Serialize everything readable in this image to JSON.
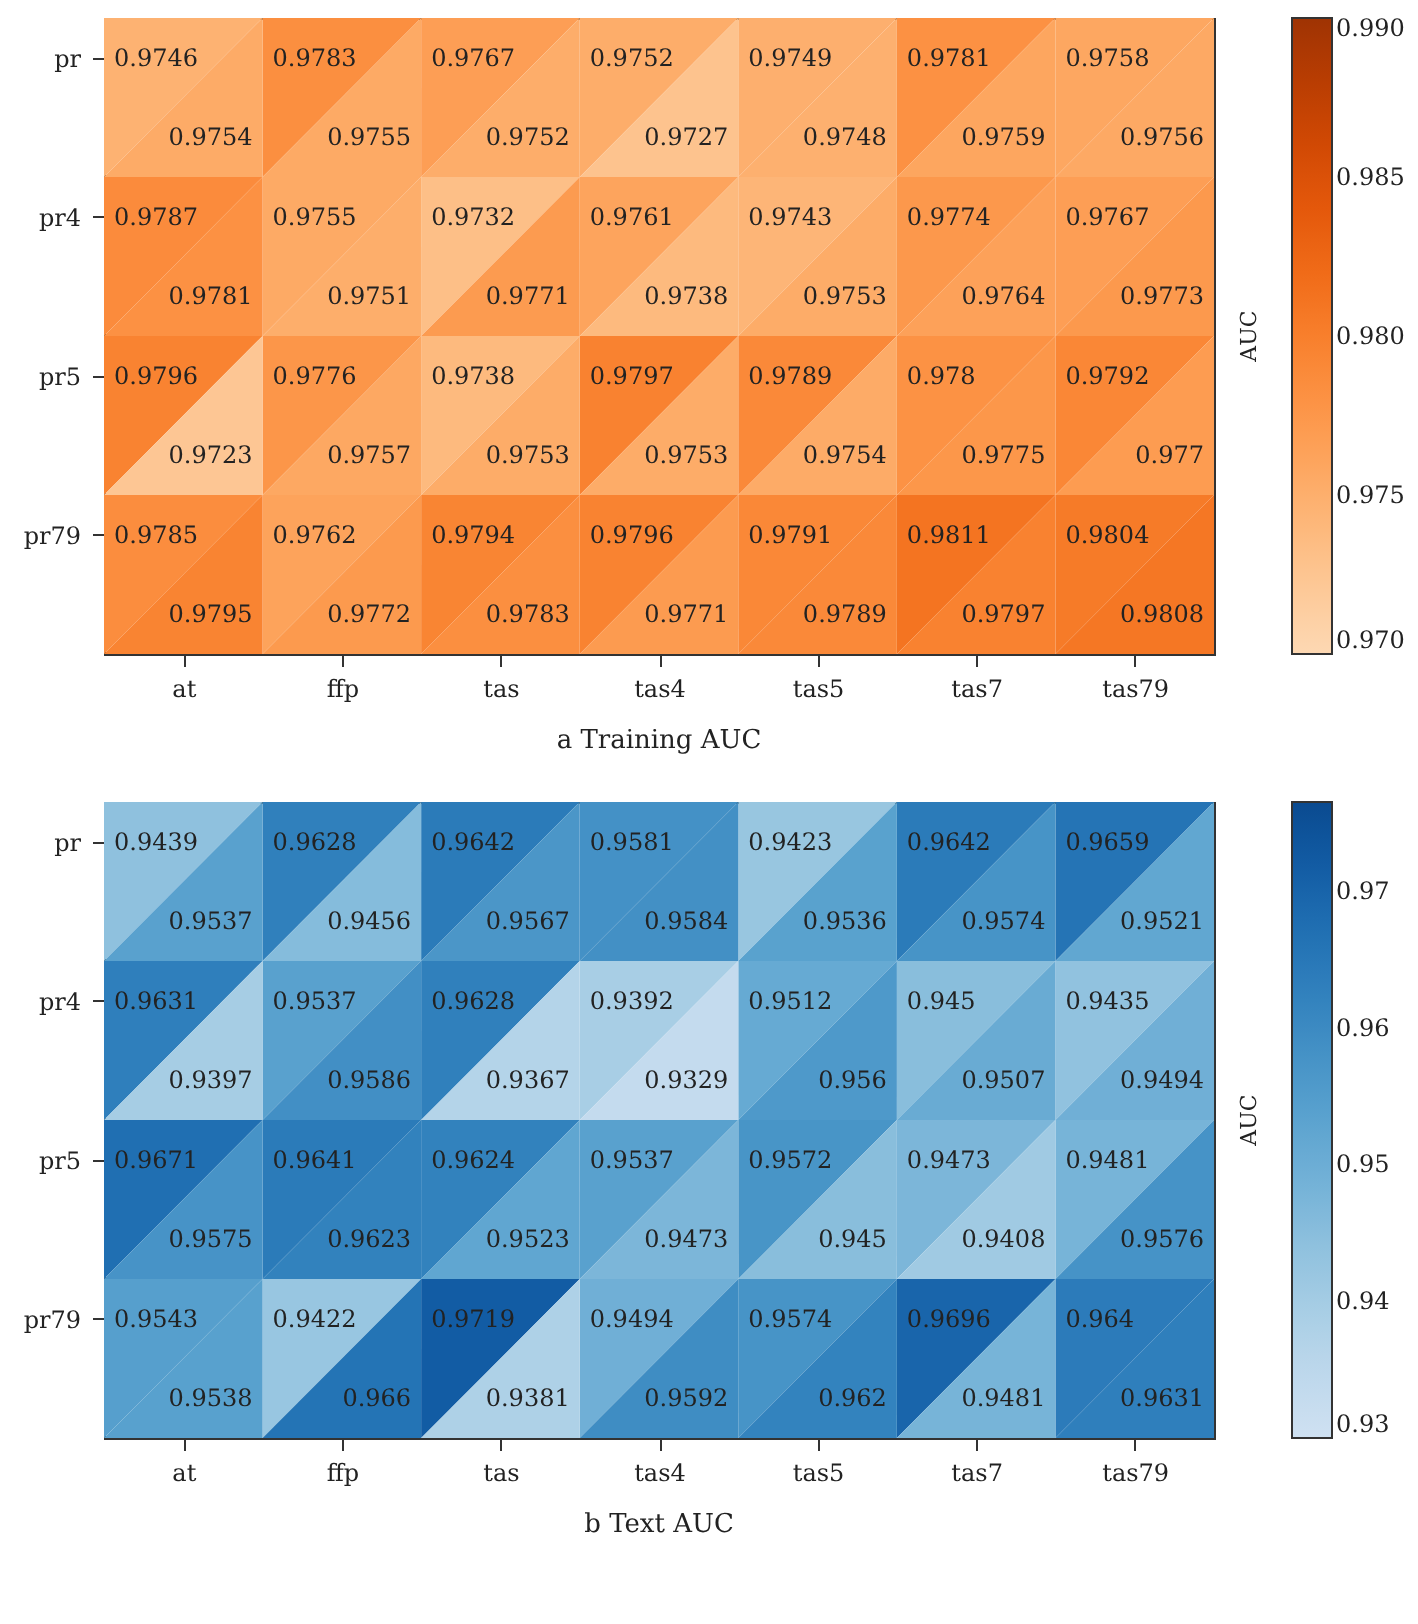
{
  "chart_data": [
    {
      "type": "heatmap",
      "title": "a Training AUC",
      "clabel": "AUC",
      "data_labels": true,
      "categories": [
        "at",
        "ffp",
        "tas",
        "tas4",
        "tas5",
        "tas7",
        "tas79"
      ],
      "y_categories": [
        "pr",
        null,
        "pr4",
        null,
        "pr5",
        null,
        "pr79",
        null
      ],
      "cells": [
        [
          0.9746,
          0.9783,
          0.9767,
          0.9752,
          0.9749,
          0.9781,
          0.9758
        ],
        [
          0.9754,
          0.9755,
          0.9752,
          0.9727,
          0.9748,
          0.9759,
          0.9756
        ],
        [
          0.9787,
          0.9755,
          0.9732,
          0.9761,
          0.9743,
          0.9774,
          0.9767
        ],
        [
          0.9781,
          0.9751,
          0.9771,
          0.9738,
          0.9753,
          0.9764,
          0.9773
        ],
        [
          0.9796,
          0.9776,
          0.9738,
          0.9797,
          0.9789,
          0.978,
          0.9792
        ],
        [
          0.9723,
          0.9757,
          0.9753,
          0.9753,
          0.9754,
          0.9775,
          0.977
        ],
        [
          0.9785,
          0.9762,
          0.9794,
          0.9796,
          0.9791,
          0.9811,
          0.9804
        ],
        [
          0.9795,
          0.9772,
          0.9783,
          0.9771,
          0.9789,
          0.9797,
          0.9808
        ]
      ],
      "clim": [
        0.97,
        0.99
      ],
      "cticks": [
        {
          "value": 0.97,
          "label": "0.970"
        },
        {
          "value": 0.975,
          "label": "0.975"
        },
        {
          "value": 0.98,
          "label": "0.980"
        },
        {
          "value": 0.985,
          "label": "0.985"
        },
        {
          "value": 0.99,
          "label": "0.990"
        }
      ]
    },
    {
      "type": "heatmap",
      "title": "b Text AUC",
      "clabel": "AUC",
      "data_labels": true,
      "categories": [
        "at",
        "ffp",
        "tas",
        "tas4",
        "tas5",
        "tas7",
        "tas79"
      ],
      "y_categories": [
        "pr",
        null,
        "pr4",
        null,
        "pr5",
        null,
        "pr79",
        null
      ],
      "cells": [
        [
          0.9439,
          0.9628,
          0.9642,
          0.9581,
          0.9423,
          0.9642,
          0.9659
        ],
        [
          0.9537,
          0.9456,
          0.9567,
          0.9584,
          0.9536,
          0.9574,
          0.9521
        ],
        [
          0.9631,
          0.9537,
          0.9628,
          0.9392,
          0.9512,
          0.945,
          0.9435
        ],
        [
          0.9397,
          0.9586,
          0.9367,
          0.9329,
          0.956,
          0.9507,
          0.9494
        ],
        [
          0.9671,
          0.9641,
          0.9624,
          0.9537,
          0.9572,
          0.9473,
          0.9481
        ],
        [
          0.9575,
          0.9623,
          0.9523,
          0.9473,
          0.945,
          0.9408,
          0.9576
        ],
        [
          0.9543,
          0.9422,
          0.9719,
          0.9494,
          0.9574,
          0.9696,
          0.964
        ],
        [
          0.9538,
          0.966,
          0.9381,
          0.9592,
          0.962,
          0.9481,
          0.9631
        ]
      ],
      "clim": [
        0.93,
        0.9765
      ],
      "cticks": [
        0.93,
        0.94,
        0.95,
        0.96,
        0.97
      ]
    }
  ]
}
